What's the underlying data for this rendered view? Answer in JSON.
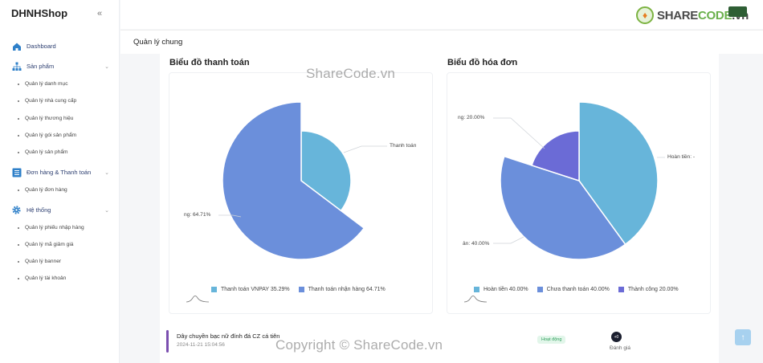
{
  "app": {
    "brand": "DHNHShop",
    "collapse_icon": "double-chevron-left-icon"
  },
  "sidebar": {
    "dashboard": "Dashboard",
    "groups": [
      {
        "label": "Sản phẩm",
        "icon": "sitemap-icon",
        "items": [
          "Quản lý danh mục",
          "Quản lý nhà cung cấp",
          "Quản lý thương hiệu",
          "Quản lý gói sản phẩm",
          "Quản lý sản phẩm"
        ]
      },
      {
        "label": "Đơn hàng & Thanh toán",
        "icon": "list-icon",
        "items": [
          "Quản lý đơn hàng"
        ]
      },
      {
        "label": "Hệ thống",
        "icon": "gear-icon",
        "items": [
          "Quản lý phiếu nhập hàng",
          "Quản lý mã giảm giá",
          "Quản lý banner",
          "Quản lý tài khoản"
        ]
      }
    ]
  },
  "header": {
    "logo_text_a": "SHARE",
    "logo_text_b": "CODE",
    "logo_text_c": ".vn",
    "page_title": "Quản lý chung"
  },
  "watermarks": {
    "top": "ShareCode.vn",
    "bottom": "Copyright © ShareCode.vn"
  },
  "chart_data": [
    {
      "type": "pie",
      "title": "Biểu đồ thanh toán",
      "categories": [
        "Thanh toán VNPAY",
        "Thanh toán nhận hàng"
      ],
      "values": [
        35.29,
        64.71
      ],
      "colors": [
        "#67b5da",
        "#6b8fdb"
      ],
      "legend": [
        "Thanh toán VNPAY 35.29%",
        "Thanh toán nhận hàng 64.71%"
      ],
      "slice_labels": [
        "Thanh toán",
        "ng: 64.71%"
      ],
      "legend_position": "bottom"
    },
    {
      "type": "pie",
      "title": "Biểu đồ hóa đơn",
      "categories": [
        "Hoàn tiền",
        "Chưa thanh toán",
        "Thành công"
      ],
      "values": [
        40.0,
        40.0,
        20.0
      ],
      "colors": [
        "#67b5da",
        "#6b8fdb",
        "#6b6bd6"
      ],
      "legend": [
        "Hoàn tiền 40.00%",
        "Chưa thanh toán 40.00%",
        "Thành công 20.00%"
      ],
      "slice_labels": [
        "Hoàn tiền: -",
        "ản: 40.00%",
        "ng: 20.00%"
      ],
      "legend_position": "bottom"
    }
  ],
  "list_row": {
    "name": "Dây chuyền bạc nữ đính đá CZ cá tiên",
    "date": "2024-11-21 15:04:56",
    "status": "Hoạt động",
    "score": "+0",
    "rate_label": "Đánh giá"
  }
}
